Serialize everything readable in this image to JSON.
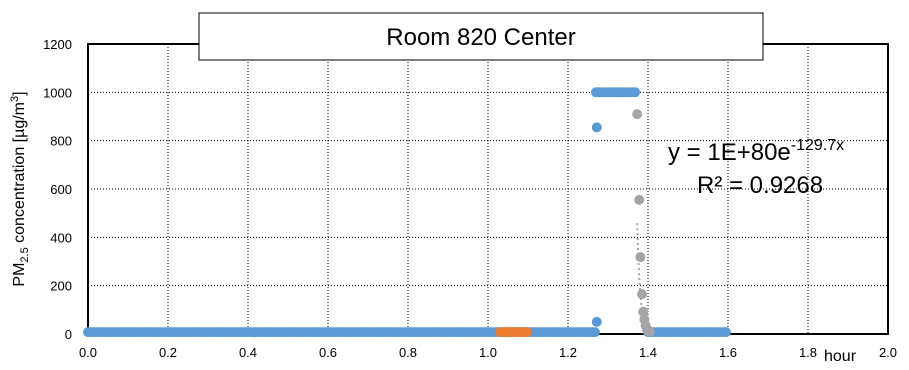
{
  "chart_data": {
    "type": "scatter",
    "title": "Room 820 Center",
    "ylabel": {
      "prefix": "PM",
      "sub": "2.5",
      "mid": " concentration [µg/m",
      "sup": "3",
      "suffix": "]"
    },
    "xunit": "hour",
    "xlim": [
      0.0,
      2.0
    ],
    "ylim": [
      0,
      1200
    ],
    "xticks": [
      "0.0",
      "0.2",
      "0.4",
      "0.6",
      "0.8",
      "1.0",
      "1.2",
      "1.4",
      "1.6",
      "1.8",
      "2.0"
    ],
    "yticks": [
      "0",
      "200",
      "400",
      "600",
      "800",
      "1000",
      "1200"
    ],
    "grid": true,
    "colors": {
      "blue": "#5b9bd5",
      "orange": "#ed7d31",
      "gray": "#a5a5a5",
      "trend": "#a5a5a5"
    },
    "series": [
      {
        "color": "#5b9bd5",
        "segments": [
          {
            "x_from": 0.0,
            "x_to": 1.27,
            "y": 8
          },
          {
            "x_from": 1.27,
            "x_to": 1.37,
            "y": 1000
          },
          {
            "x_from": 1.4,
            "x_to": 1.6,
            "y": 8
          }
        ],
        "points": [
          {
            "x": 1.272,
            "y": 855
          },
          {
            "x": 1.272,
            "y": 50
          }
        ]
      },
      {
        "color": "#ed7d31",
        "segments": [
          {
            "x_from": 1.03,
            "x_to": 1.1,
            "y": 8
          }
        ],
        "points": []
      },
      {
        "color": "#a5a5a5",
        "segments": [],
        "points": [
          {
            "x": 1.373,
            "y": 910
          },
          {
            "x": 1.378,
            "y": 555
          },
          {
            "x": 1.381,
            "y": 318
          },
          {
            "x": 1.385,
            "y": 165
          },
          {
            "x": 1.388,
            "y": 92
          },
          {
            "x": 1.391,
            "y": 60
          },
          {
            "x": 1.394,
            "y": 35
          },
          {
            "x": 1.397,
            "y": 22
          },
          {
            "x": 1.4,
            "y": 15
          },
          {
            "x": 1.404,
            "y": 10
          }
        ]
      }
    ],
    "trendline": {
      "type": "exponential",
      "equation": {
        "main": "y = 1E+80e",
        "sup": "-129.7x"
      },
      "r2": "R² = 0.9268",
      "x_from": 1.373,
      "x_to": 1.41,
      "a": 1e+80,
      "b": -129.7
    }
  }
}
